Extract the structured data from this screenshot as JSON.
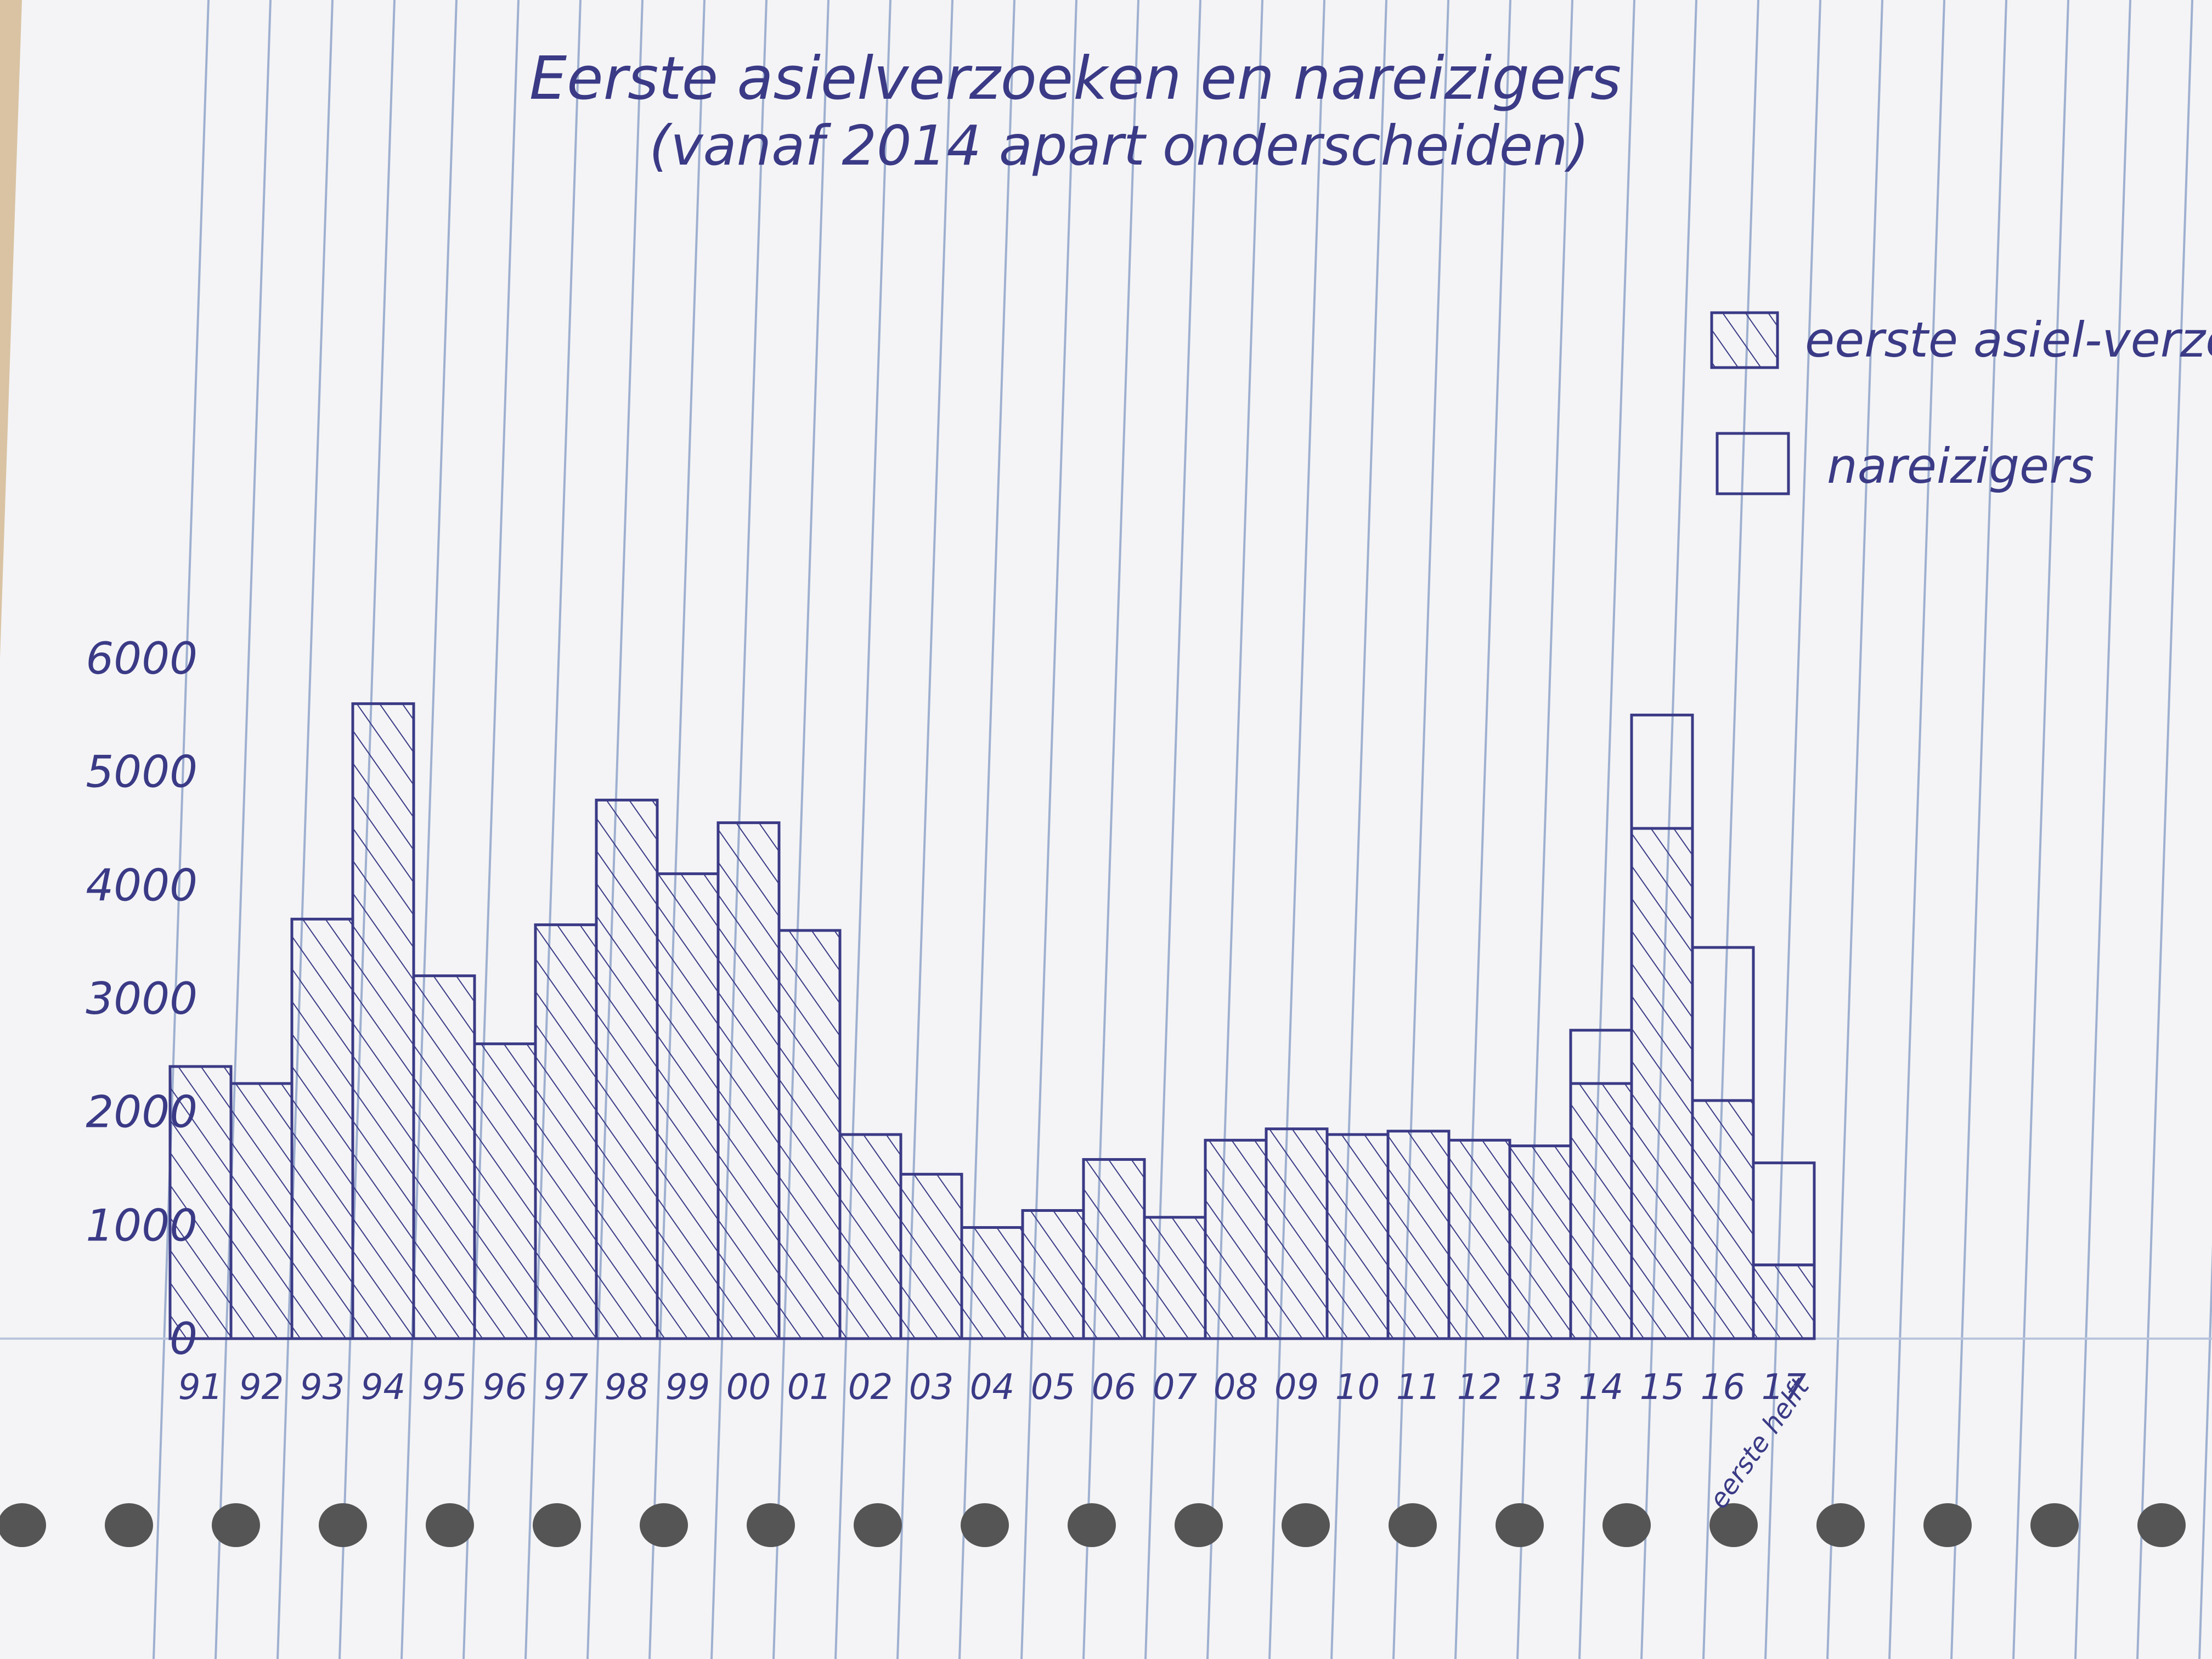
{
  "chart_data": {
    "type": "bar",
    "stacked": true,
    "title": "Eerste asielverzoeken en nareizigers",
    "subtitle": "(vanaf 2014 apart onderscheiden)",
    "categories": [
      "91",
      "92",
      "93",
      "94",
      "95",
      "96",
      "97",
      "98",
      "99",
      "00",
      "01",
      "02",
      "03",
      "04",
      "05",
      "06",
      "07",
      "08",
      "09",
      "10",
      "11",
      "12",
      "13",
      "14",
      "15",
      "16",
      "17"
    ],
    "category_note": {
      "category": "17",
      "text": "eerste helft"
    },
    "series": [
      {
        "name": "eerste asiel-verzoeken",
        "pattern": "hatched",
        "values": [
          2400,
          2250,
          3700,
          5600,
          3200,
          2600,
          3650,
          4750,
          4100,
          4550,
          3600,
          1800,
          1450,
          980,
          1130,
          1580,
          1070,
          1750,
          1850,
          1800,
          1830,
          1750,
          1700,
          2250,
          4500,
          2100,
          650
        ]
      },
      {
        "name": "nareizigers",
        "pattern": "open",
        "values": [
          0,
          0,
          0,
          0,
          0,
          0,
          0,
          0,
          0,
          0,
          0,
          0,
          0,
          0,
          0,
          0,
          0,
          0,
          0,
          0,
          0,
          0,
          0,
          470,
          1000,
          1350,
          900
        ]
      }
    ],
    "yticks": [
      0,
      1000,
      2000,
      3000,
      4000,
      5000,
      6000
    ],
    "ylim": [
      0,
      6000
    ],
    "xlabel": "",
    "ylabel": "",
    "grid": false,
    "legend_position": "top-right",
    "colors": {
      "ink": "#3a3a86",
      "paper": "#f4f4f6",
      "rule": "#9fb0d0"
    }
  }
}
